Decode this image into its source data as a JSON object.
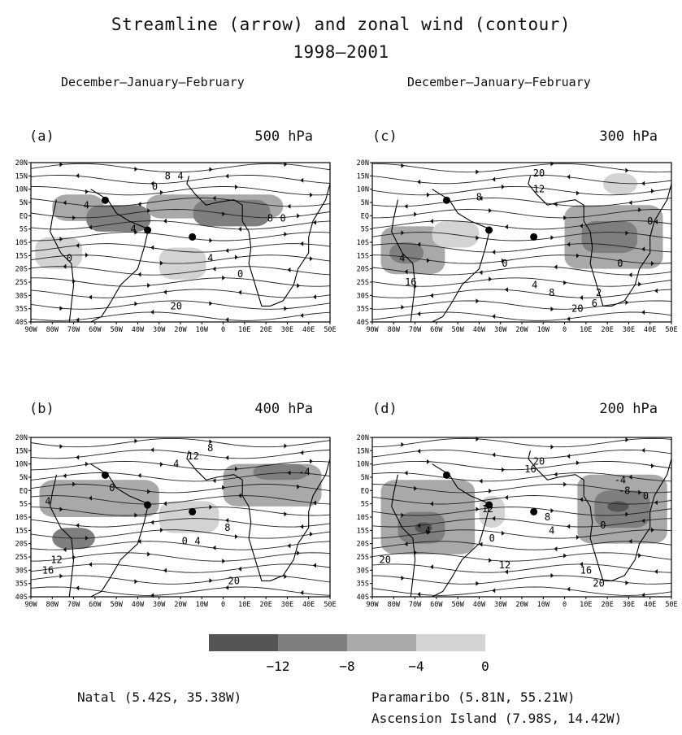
{
  "figure": {
    "title": "Streamline (arrow) and zonal wind (contour)",
    "period": "1998–2001",
    "season_left": "December–January–February",
    "season_right": "December–January–February"
  },
  "chart_data": [
    {
      "type": "heatmap",
      "panel": "(a)",
      "level": "500 hPa",
      "x_ticks": [
        "90W",
        "80W",
        "70W",
        "60W",
        "50W",
        "40W",
        "30W",
        "20W",
        "10W",
        "0",
        "10E",
        "20E",
        "30E",
        "40E",
        "50E"
      ],
      "y_ticks": [
        "20N",
        "15N",
        "10N",
        "5N",
        "EQ",
        "5S",
        "10S",
        "15S",
        "20S",
        "25S",
        "30S",
        "35S",
        "40S"
      ],
      "xlim": [
        -90,
        50
      ],
      "ylim": [
        -40,
        20
      ],
      "contour_labels": [
        {
          "text": "0",
          "lon": -72,
          "lat": -16
        },
        {
          "text": "0",
          "lon": -32,
          "lat": 11
        },
        {
          "text": "4",
          "lon": -64,
          "lat": 4
        },
        {
          "text": "8",
          "lon": -26,
          "lat": 15
        },
        {
          "text": "4",
          "lon": -20,
          "lat": 15
        },
        {
          "text": "4",
          "lon": -42,
          "lat": -5
        },
        {
          "text": "4",
          "lon": -6,
          "lat": -16
        },
        {
          "text": "8",
          "lon": 22,
          "lat": -1
        },
        {
          "text": "0",
          "lon": 28,
          "lat": -1
        },
        {
          "text": "0",
          "lon": 8,
          "lat": -22
        },
        {
          "text": "20",
          "lon": -22,
          "lat": -34
        }
      ],
      "stations": [
        {
          "name": "Paramaribo",
          "lon": -55.21,
          "lat": 5.81
        },
        {
          "name": "Natal",
          "lon": -35.38,
          "lat": -5.42
        },
        {
          "name": "Ascension Island",
          "lon": -14.42,
          "lat": -7.98
        }
      ]
    },
    {
      "type": "heatmap",
      "panel": "(c)",
      "level": "300 hPa",
      "x_ticks": [
        "90W",
        "80W",
        "70W",
        "60W",
        "50W",
        "40W",
        "30W",
        "20W",
        "10W",
        "0",
        "10E",
        "20E",
        "30E",
        "40E",
        "50E"
      ],
      "y_ticks": [
        "20N",
        "15N",
        "10N",
        "5N",
        "EQ",
        "5S",
        "10S",
        "15S",
        "20S",
        "25S",
        "30S",
        "35S",
        "40S"
      ],
      "xlim": [
        -90,
        50
      ],
      "ylim": [
        -40,
        20
      ],
      "contour_labels": [
        {
          "text": "20",
          "lon": -12,
          "lat": 16
        },
        {
          "text": "8",
          "lon": -40,
          "lat": 7
        },
        {
          "text": "12",
          "lon": -12,
          "lat": 10
        },
        {
          "text": "0",
          "lon": 40,
          "lat": -2
        },
        {
          "text": "4",
          "lon": -14,
          "lat": -26
        },
        {
          "text": "8",
          "lon": -6,
          "lat": -29
        },
        {
          "text": "0",
          "lon": -28,
          "lat": -18
        },
        {
          "text": "0",
          "lon": 26,
          "lat": -18
        },
        {
          "text": "4",
          "lon": -76,
          "lat": -16
        },
        {
          "text": "16",
          "lon": -72,
          "lat": -25
        },
        {
          "text": "2",
          "lon": 16,
          "lat": -29
        },
        {
          "text": "20",
          "lon": 6,
          "lat": -35
        },
        {
          "text": "6",
          "lon": 14,
          "lat": -33
        }
      ],
      "stations": [
        {
          "name": "Paramaribo",
          "lon": -55.21,
          "lat": 5.81
        },
        {
          "name": "Natal",
          "lon": -35.38,
          "lat": -5.42
        },
        {
          "name": "Ascension Island",
          "lon": -14.42,
          "lat": -7.98
        }
      ]
    },
    {
      "type": "heatmap",
      "panel": "(b)",
      "level": "400 hPa",
      "x_ticks": [
        "90W",
        "80W",
        "70W",
        "60W",
        "50W",
        "40W",
        "30W",
        "20W",
        "10W",
        "0",
        "10E",
        "20E",
        "30E",
        "40E",
        "50E"
      ],
      "y_ticks": [
        "20N",
        "15N",
        "10N",
        "5N",
        "EQ",
        "5S",
        "10S",
        "15S",
        "20S",
        "25S",
        "30S",
        "35S",
        "40S"
      ],
      "xlim": [
        -90,
        50
      ],
      "ylim": [
        -40,
        20
      ],
      "contour_labels": [
        {
          "text": "8",
          "lon": -6,
          "lat": 16
        },
        {
          "text": "12",
          "lon": -14,
          "lat": 13
        },
        {
          "text": "4",
          "lon": -22,
          "lat": 10
        },
        {
          "text": "0",
          "lon": -52,
          "lat": 1
        },
        {
          "text": "4",
          "lon": -82,
          "lat": -4
        },
        {
          "text": "0",
          "lon": -18,
          "lat": -19
        },
        {
          "text": "4",
          "lon": -12,
          "lat": -19
        },
        {
          "text": "8",
          "lon": 2,
          "lat": -14
        },
        {
          "text": "-4",
          "lon": 38,
          "lat": 7
        },
        {
          "text": "12",
          "lon": -78,
          "lat": -26
        },
        {
          "text": "16",
          "lon": -82,
          "lat": -30
        },
        {
          "text": "20",
          "lon": 5,
          "lat": -34
        }
      ],
      "stations": [
        {
          "name": "Paramaribo",
          "lon": -55.21,
          "lat": 5.81
        },
        {
          "name": "Natal",
          "lon": -35.38,
          "lat": -5.42
        },
        {
          "name": "Ascension Island",
          "lon": -14.42,
          "lat": -7.98
        }
      ]
    },
    {
      "type": "heatmap",
      "panel": "(d)",
      "level": "200 hPa",
      "x_ticks": [
        "90W",
        "80W",
        "70W",
        "60W",
        "50W",
        "40W",
        "30W",
        "20W",
        "10W",
        "0",
        "10E",
        "20E",
        "30E",
        "40E",
        "50E"
      ],
      "y_ticks": [
        "20N",
        "15N",
        "10N",
        "5N",
        "EQ",
        "5S",
        "10S",
        "15S",
        "20S",
        "25S",
        "30S",
        "35S",
        "40S"
      ],
      "xlim": [
        -90,
        50
      ],
      "ylim": [
        -40,
        20
      ],
      "contour_labels": [
        {
          "text": "20",
          "lon": -12,
          "lat": 11
        },
        {
          "text": "16",
          "lon": -16,
          "lat": 8
        },
        {
          "text": "12",
          "lon": -36,
          "lat": -7
        },
        {
          "text": "8",
          "lon": -8,
          "lat": -10
        },
        {
          "text": "4",
          "lon": -6,
          "lat": -15
        },
        {
          "text": "0",
          "lon": -34,
          "lat": -18
        },
        {
          "text": "-4",
          "lon": 26,
          "lat": 4
        },
        {
          "text": "-8",
          "lon": 28,
          "lat": 0
        },
        {
          "text": "0",
          "lon": 38,
          "lat": -2
        },
        {
          "text": "0",
          "lon": 18,
          "lat": -13
        },
        {
          "text": "4",
          "lon": -64,
          "lat": -15
        },
        {
          "text": "20",
          "lon": -84,
          "lat": -26
        },
        {
          "text": "12",
          "lon": -28,
          "lat": -28
        },
        {
          "text": "16",
          "lon": 10,
          "lat": -30
        },
        {
          "text": "20",
          "lon": 16,
          "lat": -35
        }
      ],
      "stations": [
        {
          "name": "Paramaribo",
          "lon": -55.21,
          "lat": 5.81
        },
        {
          "name": "Natal",
          "lon": -35.38,
          "lat": -5.42
        },
        {
          "name": "Ascension Island",
          "lon": -14.42,
          "lat": -7.98
        }
      ]
    }
  ],
  "legend": {
    "bins": [
      {
        "range": "< -12",
        "color": "#555555"
      },
      {
        "range": "-12 to -8",
        "color": "#7f7f7f"
      },
      {
        "range": "-8 to -4",
        "color": "#a9a9a9"
      },
      {
        "range": "-4 to 0",
        "color": "#d3d3d3"
      }
    ],
    "labels": [
      "−12",
      "−8",
      "−4",
      "0"
    ]
  },
  "stations_text": {
    "natal": "Natal (5.42S, 35.38W)",
    "paramaribo": "Paramaribo (5.81N, 55.21W)",
    "ascension": "Ascension Island (7.98S, 14.42W)"
  }
}
